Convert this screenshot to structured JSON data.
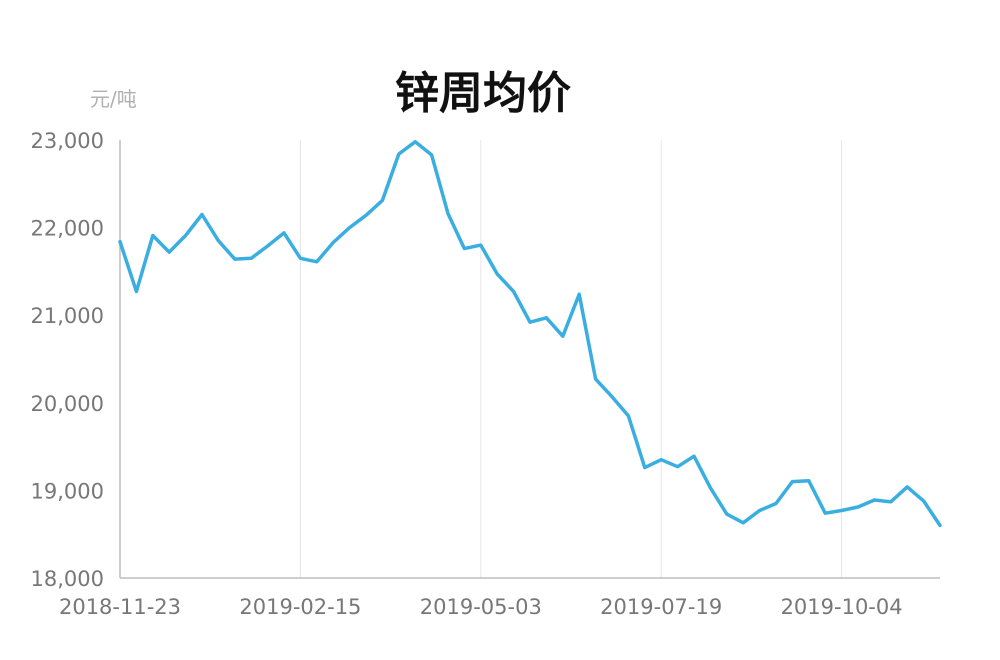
{
  "title": "锌周均价",
  "unit_label": "元/吨",
  "colors": {
    "line": "#3aaee0",
    "grid": "#e6e6e6",
    "axis": "#bdbdbd",
    "tick_text": "#777777",
    "unit_text": "#b0b0b0",
    "title_text": "#111111"
  },
  "chart_data": {
    "type": "line",
    "title": "锌周均价",
    "ylabel": "元/吨",
    "xlabel": "",
    "ylim": [
      18000,
      23000
    ],
    "grid": "vertical",
    "y_ticks": [
      18000,
      19000,
      20000,
      21000,
      22000,
      23000
    ],
    "y_tick_labels": [
      "18,000",
      "19,000",
      "20,000",
      "21,000",
      "22,000",
      "23,000"
    ],
    "x_tick_labels": [
      "2018-11-23",
      "2019-02-15",
      "2019-05-03",
      "2019-07-19",
      "2019-10-04"
    ],
    "x_tick_indices": [
      0,
      11,
      22,
      33,
      44
    ],
    "series": [
      {
        "values": [
          21840,
          21270,
          21910,
          21720,
          21910,
          22150,
          21850,
          21640,
          21650,
          21790,
          21940,
          21650,
          21610,
          21830,
          22000,
          22140,
          22310,
          22840,
          22980,
          22830,
          22160,
          21760,
          21800,
          21470,
          21270,
          20920,
          20970,
          20760,
          21240,
          20270,
          20070,
          19850,
          19260,
          19350,
          19270,
          19390,
          19030,
          18730,
          18630,
          18770,
          18850,
          19100,
          19110,
          18740,
          18770,
          18810,
          18890,
          18870,
          19040,
          18880,
          18600
        ]
      }
    ]
  }
}
